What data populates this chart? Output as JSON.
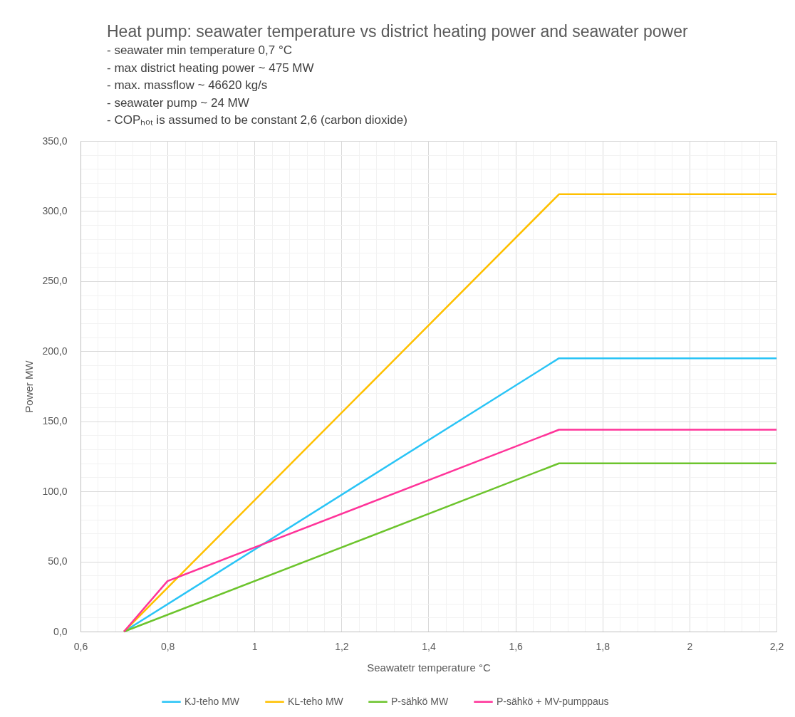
{
  "chart_data": {
    "type": "line",
    "title": "Heat pump: seawater temperature vs district heating power and seawater power",
    "subtitle": "- seawater min temperature 0,7 °C\n- max district heating power ~ 475 MW\n- max. massflow ~ 46620 kg/s\n- seawater pump ~ 24 MW\n- COPₕₒₜ is assumed to be constant 2,6 (carbon dioxide)",
    "xlabel": "Seawatetr temperature °C",
    "ylabel": "Power MW",
    "xlim": [
      0.6,
      2.2
    ],
    "ylim": [
      0,
      350
    ],
    "xticks": [
      {
        "value": 0.6,
        "label": "0,6"
      },
      {
        "value": 0.64,
        "label": null
      },
      {
        "value": 0.68,
        "label": null
      },
      {
        "value": 0.72,
        "label": null
      },
      {
        "value": 0.76,
        "label": null
      },
      {
        "value": 0.8,
        "label": "0,8"
      },
      {
        "value": 0.84,
        "label": null
      },
      {
        "value": 0.88,
        "label": null
      },
      {
        "value": 0.92,
        "label": null
      },
      {
        "value": 0.96,
        "label": null
      },
      1,
      {
        "value": 1.04,
        "label": null
      },
      {
        "value": 1.08,
        "label": null
      },
      {
        "value": 1.12,
        "label": null
      },
      {
        "value": 1.16,
        "label": null
      },
      {
        "value": 1.2,
        "label": "1,2"
      },
      {
        "value": 1.24,
        "label": null
      },
      {
        "value": 1.28,
        "label": null
      },
      {
        "value": 1.32,
        "label": null
      },
      {
        "value": 1.36,
        "label": null
      },
      {
        "value": 1.4,
        "label": "1,4"
      },
      {
        "value": 1.44,
        "label": null
      },
      {
        "value": 1.48,
        "label": null
      },
      {
        "value": 1.52,
        "label": null
      },
      {
        "value": 1.56,
        "label": null
      },
      {
        "value": 1.6,
        "label": "1,6"
      },
      {
        "value": 1.64,
        "label": null
      },
      {
        "value": 1.68,
        "label": null
      },
      {
        "value": 1.72,
        "label": null
      },
      {
        "value": 1.76,
        "label": null
      },
      {
        "value": 1.8,
        "label": "1,8"
      },
      {
        "value": 1.84,
        "label": null
      },
      {
        "value": 1.88,
        "label": null
      },
      {
        "value": 1.92,
        "label": null
      },
      {
        "value": 1.96,
        "label": null
      },
      2,
      {
        "value": 2.04,
        "label": null
      },
      {
        "value": 2.08,
        "label": null
      },
      {
        "value": 2.12,
        "label": null
      },
      {
        "value": 2.16,
        "label": null
      },
      {
        "value": 2.2,
        "label": "2,2"
      }
    ],
    "yticks": [
      {
        "value": 0,
        "label": "0,0"
      },
      {
        "value": 10,
        "label": null
      },
      {
        "value": 20,
        "label": null
      },
      {
        "value": 30,
        "label": null
      },
      {
        "value": 40,
        "label": null
      },
      {
        "value": 50,
        "label": "50,0"
      },
      {
        "value": 60,
        "label": null
      },
      {
        "value": 70,
        "label": null
      },
      {
        "value": 80,
        "label": null
      },
      {
        "value": 90,
        "label": null
      },
      {
        "value": 100,
        "label": "100,0"
      },
      {
        "value": 110,
        "label": null
      },
      {
        "value": 120,
        "label": null
      },
      {
        "value": 130,
        "label": null
      },
      {
        "value": 140,
        "label": null
      },
      {
        "value": 150,
        "label": "150,0"
      },
      {
        "value": 160,
        "label": null
      },
      {
        "value": 170,
        "label": null
      },
      {
        "value": 180,
        "label": null
      },
      {
        "value": 190,
        "label": null
      },
      {
        "value": 200,
        "label": "200,0"
      },
      {
        "value": 210,
        "label": null
      },
      {
        "value": 220,
        "label": null
      },
      {
        "value": 230,
        "label": null
      },
      {
        "value": 240,
        "label": null
      },
      {
        "value": 250,
        "label": "250,0"
      },
      {
        "value": 260,
        "label": null
      },
      {
        "value": 270,
        "label": null
      },
      {
        "value": 280,
        "label": null
      },
      {
        "value": 290,
        "label": null
      },
      {
        "value": 300,
        "label": "300,0"
      },
      {
        "value": 310,
        "label": null
      },
      {
        "value": 320,
        "label": null
      },
      {
        "value": 330,
        "label": null
      },
      {
        "value": 340,
        "label": null
      },
      {
        "value": 350,
        "label": "350,0"
      }
    ],
    "grid": true,
    "legend": "bottom",
    "marker": "none",
    "line_style": "solid",
    "series": [
      {
        "name": "KJ-teho MW",
        "color": "#29c4f6",
        "x": [
          0.7,
          1.7,
          2.2
        ],
        "values": [
          0,
          195,
          195
        ]
      },
      {
        "name": "KL-teho MW",
        "color": "#ffc000",
        "x": [
          0.7,
          1.7,
          2.2
        ],
        "values": [
          0,
          312,
          312
        ]
      },
      {
        "name": "P-sähkö MW",
        "color": "#6cc42c",
        "x": [
          0.7,
          1.7,
          2.2
        ],
        "values": [
          0,
          120,
          120
        ]
      },
      {
        "name": "P-sähkö + MV-pumppaus",
        "color": "#ff3399",
        "x": [
          0.7,
          0.8,
          1.7,
          2.2
        ],
        "values": [
          0,
          36,
          144,
          144
        ]
      }
    ]
  }
}
